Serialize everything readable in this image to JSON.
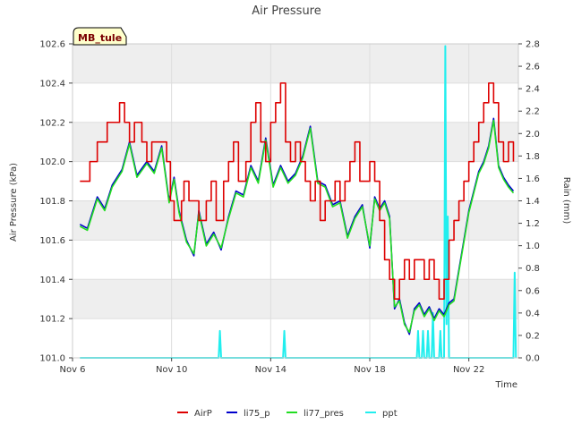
{
  "chart_data": {
    "type": "line",
    "title": "Air Pressure",
    "station_label": "MB_tule",
    "xlabel": "Time",
    "ylabel": "Air Pressure (kPa)",
    "y2label": "Rain (mm)",
    "xlim": [
      6,
      24
    ],
    "ylim": [
      101.0,
      102.6
    ],
    "y2lim": [
      0.0,
      2.8
    ],
    "x_ticks": [
      6,
      10,
      14,
      18,
      22
    ],
    "x_tick_labels": [
      "Nov 6",
      "Nov 10",
      "Nov 14",
      "Nov 18",
      "Nov 22"
    ],
    "y_ticks": [
      101.0,
      101.2,
      101.4,
      101.6,
      101.8,
      102.0,
      102.2,
      102.4,
      102.6
    ],
    "y_tick_labels": [
      "101.0",
      "101.2",
      "101.4",
      "101.6",
      "101.8",
      "102.0",
      "102.2",
      "102.4",
      "102.6"
    ],
    "y2_ticks": [
      0.0,
      0.2,
      0.4,
      0.6,
      0.8,
      1.0,
      1.2,
      1.4,
      1.6,
      1.8,
      2.0,
      2.2,
      2.4,
      2.6,
      2.8
    ],
    "y2_tick_labels": [
      "0.0",
      "0.2",
      "0.4",
      "0.6",
      "0.8",
      "1.0",
      "1.2",
      "1.4",
      "1.6",
      "1.8",
      "2.0",
      "2.2",
      "2.4",
      "2.6",
      "2.8"
    ],
    "colors": {
      "AirP": "#dd0000",
      "li75_p": "#0000cc",
      "li77_pres": "#22dd22",
      "ppt": "#22eeee",
      "band": "#eeeeee",
      "grid": "#dddddd"
    },
    "series": [
      {
        "name": "AirP",
        "axis": "left",
        "x": [
          6.3,
          6.6,
          6.7,
          7.0,
          7.2,
          7.4,
          7.9,
          8.1,
          8.3,
          8.5,
          8.8,
          9.0,
          9.2,
          9.5,
          9.8,
          9.95,
          10.1,
          10.4,
          10.5,
          10.7,
          10.9,
          11.1,
          11.4,
          11.6,
          11.8,
          12.1,
          12.3,
          12.5,
          12.7,
          13.0,
          13.2,
          13.4,
          13.6,
          13.8,
          14.0,
          14.2,
          14.4,
          14.6,
          14.8,
          15.0,
          15.2,
          15.4,
          15.6,
          15.8,
          16.0,
          16.2,
          16.4,
          16.6,
          16.8,
          17.0,
          17.2,
          17.4,
          17.6,
          17.8,
          18.0,
          18.2,
          18.4,
          18.6,
          18.8,
          19.0,
          19.2,
          19.4,
          19.6,
          19.8,
          20.0,
          20.2,
          20.4,
          20.6,
          20.8,
          21.0,
          21.2,
          21.4,
          21.6,
          21.8,
          22.0,
          22.2,
          22.4,
          22.6,
          22.8,
          23.0,
          23.2,
          23.4,
          23.6,
          23.8
        ],
        "y": [
          101.9,
          101.9,
          102.0,
          102.1,
          102.1,
          102.2,
          102.3,
          102.2,
          102.1,
          102.2,
          102.1,
          102.0,
          102.1,
          102.1,
          102.0,
          101.8,
          101.7,
          101.8,
          101.9,
          101.8,
          101.8,
          101.7,
          101.8,
          101.9,
          101.7,
          101.9,
          102.0,
          102.1,
          101.9,
          102.0,
          102.2,
          102.3,
          102.1,
          102.0,
          102.2,
          102.3,
          102.4,
          102.1,
          102.0,
          102.1,
          102.0,
          101.9,
          101.8,
          101.9,
          101.7,
          101.8,
          101.8,
          101.9,
          101.8,
          101.9,
          102.0,
          102.1,
          101.9,
          101.9,
          102.0,
          101.9,
          101.7,
          101.5,
          101.4,
          101.3,
          101.4,
          101.5,
          101.4,
          101.5,
          101.5,
          101.4,
          101.5,
          101.4,
          101.3,
          101.4,
          101.6,
          101.7,
          101.8,
          101.9,
          102.0,
          102.1,
          102.2,
          102.3,
          102.4,
          102.3,
          102.1,
          102.0,
          102.1,
          102.0
        ]
      },
      {
        "name": "li75_p",
        "axis": "left",
        "x": [
          6.3,
          6.6,
          7.0,
          7.3,
          7.6,
          8.0,
          8.3,
          8.6,
          9.0,
          9.3,
          9.6,
          9.9,
          10.1,
          10.3,
          10.6,
          10.9,
          11.1,
          11.4,
          11.7,
          12.0,
          12.3,
          12.6,
          12.9,
          13.2,
          13.5,
          13.8,
          14.1,
          14.4,
          14.7,
          15.0,
          15.3,
          15.6,
          15.9,
          16.2,
          16.5,
          16.8,
          17.1,
          17.4,
          17.7,
          18.0,
          18.2,
          18.4,
          18.6,
          18.8,
          19.0,
          19.2,
          19.4,
          19.6,
          19.8,
          20.0,
          20.2,
          20.4,
          20.6,
          20.8,
          21.0,
          21.2,
          21.4,
          21.6,
          21.8,
          22.0,
          22.2,
          22.4,
          22.6,
          22.8,
          23.0,
          23.2,
          23.4,
          23.6,
          23.8
        ],
        "y": [
          101.68,
          101.66,
          101.82,
          101.76,
          101.88,
          101.96,
          102.1,
          101.93,
          102.0,
          101.95,
          102.08,
          101.8,
          101.92,
          101.75,
          101.6,
          101.52,
          101.75,
          101.58,
          101.64,
          101.55,
          101.72,
          101.85,
          101.83,
          101.98,
          101.9,
          102.12,
          101.88,
          101.98,
          101.9,
          101.94,
          102.03,
          102.18,
          101.9,
          101.88,
          101.78,
          101.8,
          101.62,
          101.72,
          101.78,
          101.56,
          101.82,
          101.76,
          101.8,
          101.72,
          101.25,
          101.3,
          101.18,
          101.12,
          101.25,
          101.28,
          101.22,
          101.26,
          101.2,
          101.25,
          101.22,
          101.28,
          101.3,
          101.45,
          101.6,
          101.75,
          101.85,
          101.95,
          102.0,
          102.08,
          102.22,
          101.98,
          101.92,
          101.88,
          101.85
        ]
      },
      {
        "name": "li77_pres",
        "axis": "left",
        "x": [
          6.3,
          6.6,
          7.0,
          7.3,
          7.6,
          8.0,
          8.3,
          8.6,
          9.0,
          9.3,
          9.6,
          9.9,
          10.1,
          10.3,
          10.6,
          10.9,
          11.1,
          11.4,
          11.7,
          12.0,
          12.3,
          12.6,
          12.9,
          13.2,
          13.5,
          13.8,
          14.1,
          14.4,
          14.7,
          15.0,
          15.3,
          15.6,
          15.9,
          16.2,
          16.5,
          16.8,
          17.1,
          17.4,
          17.7,
          18.0,
          18.2,
          18.4,
          18.6,
          18.8,
          19.0,
          19.2,
          19.4,
          19.6,
          19.8,
          20.0,
          20.2,
          20.4,
          20.6,
          20.8,
          21.0,
          21.2,
          21.4,
          21.6,
          21.8,
          22.0,
          22.2,
          22.4,
          22.6,
          22.8,
          23.0,
          23.2,
          23.4,
          23.6,
          23.8
        ],
        "y": [
          101.67,
          101.65,
          101.81,
          101.75,
          101.87,
          101.95,
          102.09,
          101.92,
          101.99,
          101.94,
          102.07,
          101.79,
          101.91,
          101.74,
          101.59,
          101.53,
          101.74,
          101.57,
          101.63,
          101.56,
          101.71,
          101.84,
          101.82,
          101.97,
          101.89,
          102.11,
          101.87,
          101.97,
          101.89,
          101.93,
          102.02,
          102.17,
          101.89,
          101.87,
          101.77,
          101.79,
          101.61,
          101.71,
          101.77,
          101.57,
          101.81,
          101.75,
          101.79,
          101.71,
          101.26,
          101.29,
          101.17,
          101.13,
          101.24,
          101.27,
          101.21,
          101.25,
          101.19,
          101.24,
          101.21,
          101.27,
          101.29,
          101.44,
          101.59,
          101.74,
          101.84,
          101.94,
          101.99,
          102.07,
          102.21,
          101.97,
          101.91,
          101.87,
          101.84
        ]
      },
      {
        "name": "ppt",
        "axis": "right",
        "x": [
          6.3,
          11.9,
          11.95,
          12.0,
          14.5,
          14.55,
          14.6,
          19.9,
          19.95,
          20.0,
          20.1,
          20.15,
          20.2,
          20.3,
          20.35,
          20.4,
          20.5,
          20.55,
          20.6,
          20.8,
          20.85,
          20.9,
          21.0,
          21.05,
          21.1,
          21.15,
          21.2,
          21.3,
          23.8,
          23.85,
          23.9
        ],
        "y": [
          0.0,
          0.0,
          0.24,
          0.0,
          0.0,
          0.24,
          0.0,
          0.0,
          0.24,
          0.0,
          0.0,
          0.24,
          0.0,
          0.0,
          0.24,
          0.0,
          0.0,
          0.4,
          0.0,
          0.0,
          0.24,
          0.0,
          0.0,
          2.78,
          0.3,
          1.26,
          0.0,
          0.0,
          0.0,
          0.76,
          0.0
        ]
      }
    ],
    "legend_position": "bottom-center"
  }
}
